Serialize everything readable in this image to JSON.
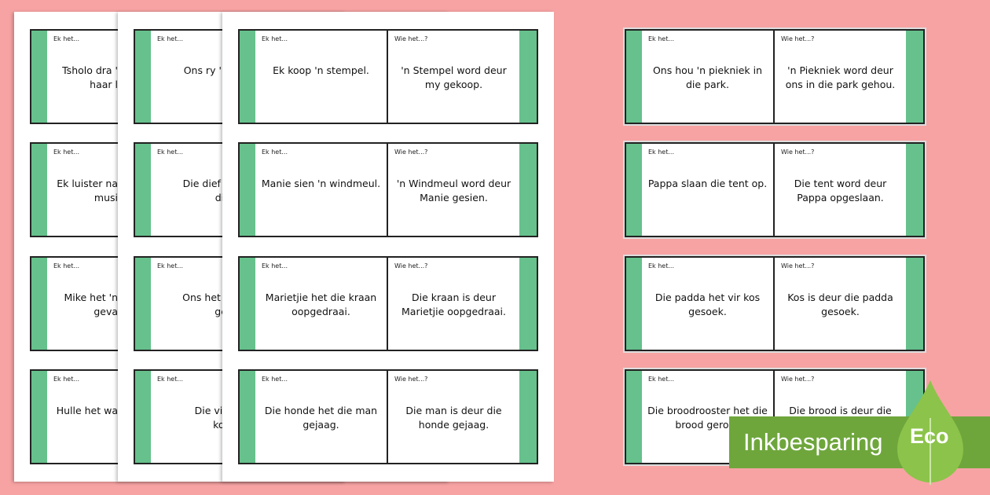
{
  "labels": {
    "left": "Ek het...",
    "right": "Wie het...?"
  },
  "colors": {
    "background": "#f7a3a3",
    "card_strip": "#66c18c",
    "eco_banner": "#6ea63c",
    "leaf": "#8cc34a"
  },
  "sheet1": {
    "cards": [
      {
        "lines": [
          "Tsholo dra '",
          "haar l"
        ]
      },
      {
        "lines": [
          "Ek luister na",
          "musi"
        ]
      },
      {
        "lines": [
          "Mike het 'n",
          "geva"
        ]
      },
      {
        "lines": [
          "Hulle het wa"
        ]
      }
    ]
  },
  "sheet2": {
    "cards": [
      {
        "lines": [
          "Ons ry 'n w"
        ]
      },
      {
        "lines": [
          "Die dief ste",
          "die k"
        ]
      },
      {
        "lines": [
          "Ons het die",
          "geve"
        ]
      },
      {
        "lines": [
          "Die visse",
          "kos g"
        ]
      }
    ]
  },
  "sheet3": {
    "cards": [
      {
        "left": "Ek koop 'n stempel.",
        "right": "'n Stempel word deur my gekoop."
      },
      {
        "left": "Manie sien 'n windmeul.",
        "right": "'n Windmeul word deur Manie gesien."
      },
      {
        "left": "Marietjie het die kraan oopgedraai.",
        "right": "Die kraan is deur Marietjie oopgedraai."
      },
      {
        "left": "Die honde het die man gejaag.",
        "right": "Die man is deur die honde gejaag."
      }
    ]
  },
  "right_cards": [
    {
      "left": "Ons hou 'n piekniek in die park.",
      "right": "'n Piekniek word deur ons in die park gehou."
    },
    {
      "left": "Pappa slaan die tent op.",
      "right": "Die tent word deur Pappa opgeslaan."
    },
    {
      "left": "Die padda het vir kos gesoek.",
      "right": "Kos is deur die padda gesoek."
    },
    {
      "left": "Die broodrooster het die brood geroos",
      "right": "Die brood is deur die"
    }
  ],
  "badge": {
    "text": "Inkbesparing",
    "eco": "Eco",
    "icon": "leaf-icon"
  }
}
